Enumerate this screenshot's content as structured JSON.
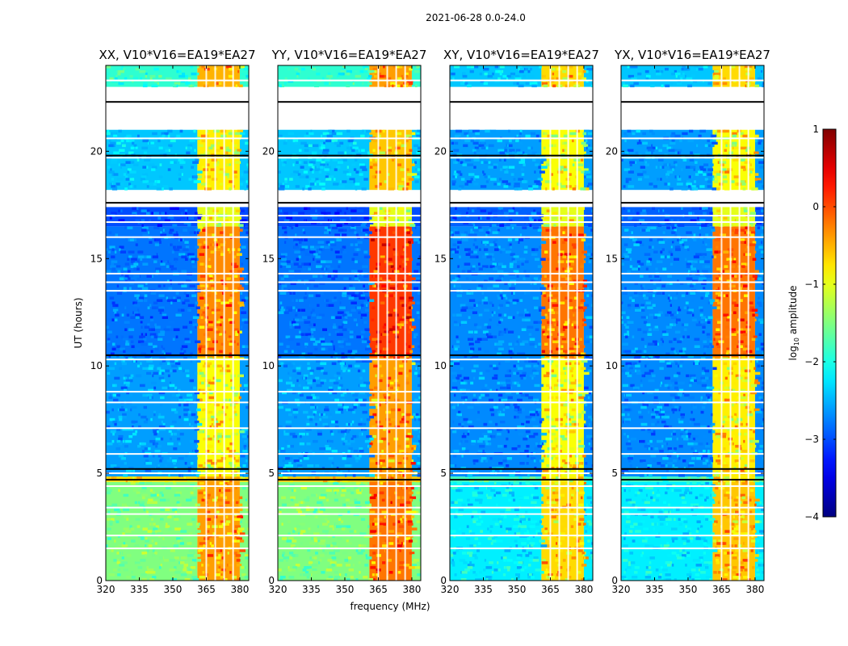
{
  "chart_data": {
    "type": "heatmap",
    "suptitle": "2021-06-28 0.0-24.0",
    "panels": [
      {
        "title": "XX, V10*V16=EA19*EA27",
        "pol": "XX"
      },
      {
        "title": "YY, V10*V16=EA19*EA27",
        "pol": "YY"
      },
      {
        "title": "XY, V10*V16=EA19*EA27",
        "pol": "XY"
      },
      {
        "title": "YX, V10*V16=EA19*EA27",
        "pol": "YX"
      }
    ],
    "xlabel": "frequency (MHz)",
    "ylabel": "UT (hours)",
    "xlim": [
      320,
      384
    ],
    "ylim": [
      0,
      24
    ],
    "xticks": [
      "320",
      "335",
      "350",
      "365",
      "380"
    ],
    "xtick_values": [
      320,
      335,
      350,
      365,
      380
    ],
    "yticks": [
      "0",
      "5",
      "10",
      "15",
      "20"
    ],
    "ytick_values": [
      0,
      5,
      10,
      15,
      20
    ],
    "colorbar": {
      "label": "log",
      "label_sub": "10",
      "label_rest": " amplitude",
      "range": [
        -4,
        1
      ],
      "ticks": [
        "−4",
        "−3",
        "−2",
        "−1",
        "0",
        "1"
      ],
      "tick_values": [
        -4,
        -3,
        -2,
        -1,
        0,
        1
      ],
      "colormap": "jet"
    },
    "signal_band_mhz": [
      361,
      380
    ],
    "signal_band_channels_mhz": [
      365,
      369,
      373,
      377
    ],
    "flagged_time_ranges_hours": [
      [
        22.2,
        23.0
      ],
      [
        21.0,
        22.0
      ],
      [
        17.5,
        18.2
      ],
      [
        12.9,
        13.1
      ]
    ],
    "data_rows_hours": [
      {
        "t0": 0.0,
        "t1": 4.6,
        "xx": -1.5,
        "yy": -1.5,
        "xy": -2.2,
        "yx": -2.2,
        "sig_xx": -0.4,
        "sig_yy": -0.2,
        "sig_xy": -0.7,
        "sig_yx": -0.6
      },
      {
        "t0": 4.6,
        "t1": 4.85,
        "xx": -0.7,
        "yy": -0.6,
        "xy": -1.8,
        "yx": -1.8,
        "sig_xx": -0.4,
        "sig_yy": -0.4,
        "sig_xy": -0.8,
        "sig_yx": -0.8
      },
      {
        "t0": 4.85,
        "t1": 10.4,
        "xx": -2.6,
        "yy": -2.6,
        "xy": -2.7,
        "yx": -2.7,
        "sig_xx": -0.9,
        "sig_yy": -0.4,
        "sig_xy": -0.9,
        "sig_yx": -0.8
      },
      {
        "t0": 10.4,
        "t1": 16.5,
        "xx": -2.8,
        "yy": -2.8,
        "xy": -2.7,
        "yx": -2.7,
        "sig_xx": -0.3,
        "sig_yy": 0.1,
        "sig_xy": -0.2,
        "sig_yx": -0.2
      },
      {
        "t0": 16.5,
        "t1": 17.4,
        "xx": -3.0,
        "yy": -3.0,
        "xy": -2.9,
        "yx": -2.9,
        "sig_xx": -1.0,
        "sig_yy": -1.0,
        "sig_xy": -1.0,
        "sig_yx": -1.0
      },
      {
        "t0": 18.2,
        "t1": 21.0,
        "xx": -2.4,
        "yy": -2.4,
        "xy": -2.6,
        "yx": -2.6,
        "sig_xx": -0.8,
        "sig_yy": -0.6,
        "sig_xy": -0.9,
        "sig_yx": -0.9
      },
      {
        "t0": 23.0,
        "t1": 24.0,
        "xx": -1.9,
        "yy": -1.9,
        "xy": -2.4,
        "yx": -2.4,
        "sig_xx": -0.5,
        "sig_yy": -0.4,
        "sig_xy": -0.7,
        "sig_yx": -0.7
      }
    ]
  }
}
